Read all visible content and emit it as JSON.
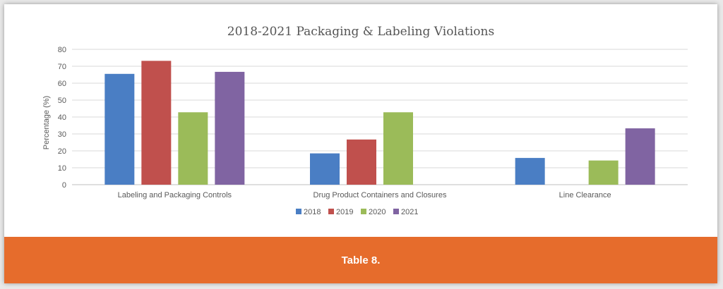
{
  "chart_data": {
    "type": "bar",
    "title": "2018-2021 Packaging & Labeling Violations",
    "xlabel": "",
    "ylabel": "Percentage (%)",
    "ylim": [
      0,
      80
    ],
    "yticks": [
      0,
      10,
      20,
      30,
      40,
      50,
      60,
      70,
      80
    ],
    "grid": true,
    "legend_position": "bottom",
    "categories": [
      "Labeling and Packaging Controls",
      "Drug Product Containers and Closures",
      "Line Clearance"
    ],
    "series": [
      {
        "name": "2018",
        "color": "#4a7ec4",
        "values": [
          65.5,
          18.5,
          15.8
        ]
      },
      {
        "name": "2019",
        "color": "#c0504d",
        "values": [
          73.2,
          26.7,
          0
        ]
      },
      {
        "name": "2020",
        "color": "#9bbb59",
        "values": [
          42.8,
          42.8,
          14.3
        ]
      },
      {
        "name": "2021",
        "color": "#8064a2",
        "values": [
          66.7,
          0,
          33.3
        ]
      }
    ]
  },
  "footer": {
    "caption": "Table 8.",
    "background": "#e66c2c"
  }
}
